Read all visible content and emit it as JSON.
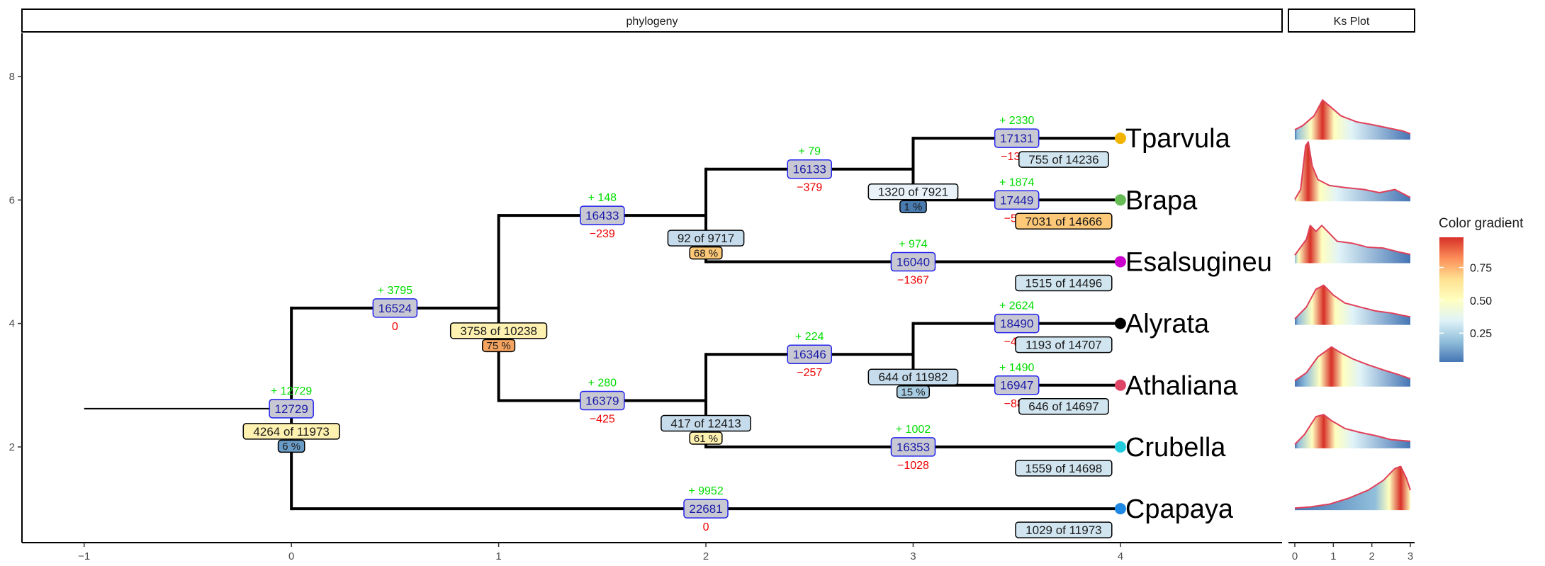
{
  "chart_data": [
    {
      "type": "tree",
      "panel_title": "phylogeny",
      "x_ticks": [
        -1,
        0,
        1,
        2,
        3,
        4
      ],
      "y_ticks": [
        2,
        4,
        6,
        8
      ],
      "xlim": [
        -1.3,
        4.78
      ],
      "ylim": [
        0.45,
        8.7
      ],
      "root": {
        "x": -1,
        "y": 2.62,
        "x_end": 0
      },
      "tips": [
        {
          "name": "Tparvula",
          "x": 4,
          "y": 7,
          "color": "#f0b400",
          "count_label": "755 of 14236",
          "count_fill": "#d1e5f0"
        },
        {
          "name": "Brapa",
          "x": 4,
          "y": 6,
          "color": "#66bb55",
          "count_label": "7031 of 14666",
          "count_fill": "#fdc978"
        },
        {
          "name": "Esalsugineu",
          "x": 4,
          "y": 5,
          "color": "#cc00cc",
          "count_label": "1515 of 14496",
          "count_fill": "#d1e5f0"
        },
        {
          "name": "Alyrata",
          "x": 4,
          "y": 4,
          "color": "#000000",
          "count_label": "1193 of 14707",
          "count_fill": "#d1e5f0"
        },
        {
          "name": "Athaliana",
          "x": 4,
          "y": 3,
          "color": "#dd4466",
          "count_label": "646 of 14697",
          "count_fill": "#d1e5f0"
        },
        {
          "name": "Crubella",
          "x": 4,
          "y": 2,
          "color": "#22ccdd",
          "count_label": "1559 of 14698",
          "count_fill": "#d1e5f0"
        },
        {
          "name": "Cpapaya",
          "x": 4,
          "y": 1,
          "color": "#1e88e5",
          "count_label": "1029 of 11973",
          "count_fill": "#d1e5f0"
        }
      ],
      "internal_nodes": [
        {
          "id": "n0",
          "x": 0,
          "y_low": 1,
          "y_high": 4.25,
          "label": "4264 of 11973",
          "label_fill": "#fff2b0",
          "pct": "6 %",
          "pct_fill": "#6a9cc8"
        },
        {
          "id": "n1",
          "x": 1,
          "y_low": 2.75,
          "y_high": 5.75,
          "label": "3758 of 10238",
          "label_fill": "#fff2b0",
          "pct": "75 %",
          "pct_fill": "#f4a460"
        },
        {
          "id": "n2",
          "x": 2,
          "y_low": 5,
          "y_high": 6.5,
          "label": "92 of 9717",
          "label_fill": "#c6dcec",
          "pct": "68 %",
          "pct_fill": "#fdc978"
        },
        {
          "id": "n3",
          "x": 3,
          "y_low": 6,
          "y_high": 7,
          "label": "1320 of 7921",
          "label_fill": "#e8f2f8",
          "pct": "1 %",
          "pct_fill": "#4a7bb0"
        },
        {
          "id": "n4",
          "x": 2,
          "y_low": 2,
          "y_high": 3.5,
          "label": "417 of 12413",
          "label_fill": "#c6dcec",
          "pct": "61 %",
          "pct_fill": "#fff2b0"
        },
        {
          "id": "n5",
          "x": 3,
          "y_low": 3,
          "y_high": 4,
          "label": "644 of 11982",
          "label_fill": "#c6dcec",
          "pct": "15 %",
          "pct_fill": "#a8cce2"
        }
      ],
      "branches": [
        {
          "x_start": -1,
          "x_end": 0,
          "y": 2.62,
          "count": "12729",
          "gain": "+ 12729",
          "loss": ""
        },
        {
          "x_start": 0,
          "x_end": 1,
          "y": 4.25,
          "count": "16524",
          "gain": "+ 3795",
          "loss": "0"
        },
        {
          "x_start": 0,
          "x_end": 4,
          "y": 1,
          "count": "22681",
          "gain": "+ 9952",
          "loss": "0"
        },
        {
          "x_start": 1,
          "x_end": 2,
          "y": 5.75,
          "count": "16433",
          "gain": "+ 148",
          "loss": "−239"
        },
        {
          "x_start": 1,
          "x_end": 2,
          "y": 2.75,
          "count": "16379",
          "gain": "+ 280",
          "loss": "−425"
        },
        {
          "x_start": 2,
          "x_end": 3,
          "y": 6.5,
          "count": "16133",
          "gain": "+ 79",
          "loss": "−379"
        },
        {
          "x_start": 2,
          "x_end": 4,
          "y": 5,
          "count": "16040",
          "gain": "+ 974",
          "loss": "−1367"
        },
        {
          "x_start": 3,
          "x_end": 4,
          "y": 7,
          "count": "17131",
          "gain": "+ 2330",
          "loss": "−1332"
        },
        {
          "x_start": 3,
          "x_end": 4,
          "y": 6,
          "count": "17449",
          "gain": "+ 1874",
          "loss": "−558"
        },
        {
          "x_start": 2,
          "x_end": 3,
          "y": 3.5,
          "count": "16346",
          "gain": "+ 224",
          "loss": "−257"
        },
        {
          "x_start": 2,
          "x_end": 4,
          "y": 2,
          "count": "16353",
          "gain": "+ 1002",
          "loss": "−1028"
        },
        {
          "x_start": 3,
          "x_end": 4,
          "y": 4,
          "count": "18490",
          "gain": "+ 2624",
          "loss": "−480"
        },
        {
          "x_start": 3,
          "x_end": 4,
          "y": 3,
          "count": "16947",
          "gain": "+ 1490",
          "loss": "−889"
        }
      ]
    },
    {
      "type": "area",
      "panel_title": "Ks Plot",
      "x_ticks": [
        0,
        1,
        2,
        3
      ],
      "xlim": [
        0,
        3
      ],
      "line_color": "#e0405a",
      "ridges": [
        {
          "tip": "Tparvula",
          "x": [
            0,
            0.2,
            0.5,
            0.72,
            0.9,
            1.2,
            1.6,
            2.0,
            2.4,
            2.8,
            3.0
          ],
          "y": [
            0.25,
            0.35,
            0.6,
            1.0,
            0.85,
            0.6,
            0.45,
            0.38,
            0.3,
            0.22,
            0.15
          ],
          "peak_x": 0.72
        },
        {
          "tip": "Brapa",
          "x": [
            0,
            0.15,
            0.28,
            0.35,
            0.45,
            0.6,
            0.9,
            1.3,
            1.8,
            2.2,
            2.6,
            3.0
          ],
          "y": [
            0.05,
            0.3,
            1.4,
            1.5,
            0.9,
            0.55,
            0.4,
            0.35,
            0.3,
            0.22,
            0.3,
            0.1
          ],
          "peak_x": 0.35
        },
        {
          "tip": "Esalsugineu",
          "x": [
            0,
            0.3,
            0.4,
            0.55,
            0.7,
            0.9,
            1.1,
            1.5,
            1.9,
            2.3,
            2.7,
            3.0
          ],
          "y": [
            0.2,
            0.6,
            0.95,
            0.8,
            0.95,
            0.75,
            0.55,
            0.5,
            0.4,
            0.38,
            0.28,
            0.22
          ],
          "peak_x": 0.4
        },
        {
          "tip": "Alyrata",
          "x": [
            0,
            0.3,
            0.55,
            0.75,
            1.0,
            1.3,
            1.7,
            2.1,
            2.5,
            3.0
          ],
          "y": [
            0.15,
            0.45,
            0.9,
            1.0,
            0.75,
            0.55,
            0.45,
            0.35,
            0.3,
            0.2
          ],
          "peak_x": 0.75
        },
        {
          "tip": "Athaliana",
          "x": [
            0,
            0.3,
            0.6,
            0.95,
            1.2,
            1.5,
            1.9,
            2.3,
            2.7,
            3.0
          ],
          "y": [
            0.15,
            0.35,
            0.75,
            1.0,
            0.85,
            0.7,
            0.55,
            0.42,
            0.3,
            0.2
          ],
          "peak_x": 0.95
        },
        {
          "tip": "Crubella",
          "x": [
            0,
            0.25,
            0.55,
            0.75,
            0.95,
            1.3,
            1.7,
            2.1,
            2.5,
            3.0
          ],
          "y": [
            0.1,
            0.35,
            0.8,
            0.85,
            0.7,
            0.5,
            0.4,
            0.32,
            0.22,
            0.18
          ],
          "peak_x": 0.75
        },
        {
          "tip": "Cpapaya",
          "x": [
            0,
            0.4,
            0.9,
            1.4,
            1.9,
            2.3,
            2.6,
            2.75,
            2.9,
            3.0
          ],
          "y": [
            0.05,
            0.08,
            0.15,
            0.3,
            0.5,
            0.75,
            1.05,
            1.1,
            0.8,
            0.5
          ],
          "peak_x": 2.75
        }
      ]
    }
  ],
  "legend": {
    "title": "Color gradient",
    "ticks": [
      {
        "value": 0.75,
        "label": "0.75"
      },
      {
        "value": 0.5,
        "label": "0.50"
      },
      {
        "value": 0.25,
        "label": "0.25"
      }
    ],
    "colors": [
      "#4575b4",
      "#91bfdb",
      "#e0f3f8",
      "#ffffbf",
      "#fee090",
      "#fc8d59",
      "#d73027"
    ]
  }
}
